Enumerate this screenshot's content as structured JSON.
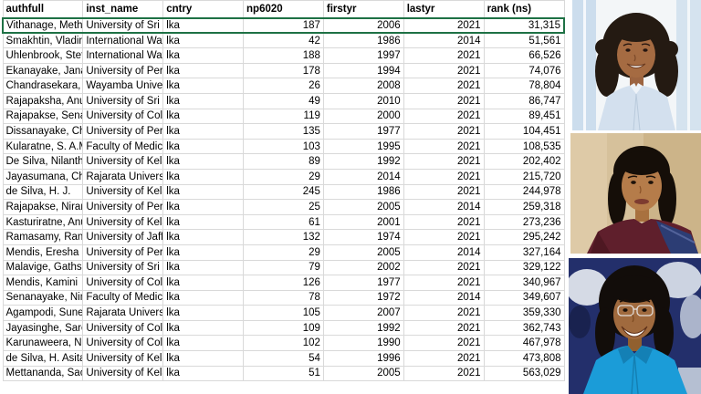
{
  "table": {
    "columns": [
      {
        "key": "authfull",
        "label": "authfull"
      },
      {
        "key": "inst_name",
        "label": "inst_name"
      },
      {
        "key": "cntry",
        "label": "cntry"
      },
      {
        "key": "np6020",
        "label": "np6020"
      },
      {
        "key": "firstyr",
        "label": "firstyr"
      },
      {
        "key": "lastyr",
        "label": "lastyr"
      },
      {
        "key": "rank_ns",
        "label": "rank (ns)"
      }
    ],
    "rows": [
      {
        "authfull": "Vithanage, Meththika",
        "inst_name": "University of Sri Jayewardenepu",
        "cntry": "lka",
        "np6020": "187",
        "firstyr": "2006",
        "lastyr": "2021",
        "rank_ns": "31,315",
        "highlight": "selected"
      },
      {
        "authfull": "Smakhtin, Vladimir",
        "inst_name": "International Water Manageme",
        "cntry": "lka",
        "np6020": "42",
        "firstyr": "1986",
        "lastyr": "2014",
        "rank_ns": "51,561",
        "highlight": null
      },
      {
        "authfull": "Uhlenbrook, Stefan",
        "inst_name": "International Water Manageme",
        "cntry": "lka",
        "np6020": "188",
        "firstyr": "1997",
        "lastyr": "2021",
        "rank_ns": "66,526",
        "highlight": null
      },
      {
        "authfull": "Ekanayake, Janaka",
        "inst_name": "University of Peradeniya",
        "cntry": "lka",
        "np6020": "178",
        "firstyr": "1994",
        "lastyr": "2021",
        "rank_ns": "74,076",
        "highlight": null
      },
      {
        "authfull": "Chandrasekara, Anoma",
        "inst_name": "Wayamba University of Sri Lank",
        "cntry": "lka",
        "np6020": "26",
        "firstyr": "2008",
        "lastyr": "2021",
        "rank_ns": "78,804",
        "highlight": null
      },
      {
        "authfull": "Rajapaksha, Anushka Upar",
        "inst_name": "University of Sri Jayewardenepu",
        "cntry": "lka",
        "np6020": "49",
        "firstyr": "2010",
        "lastyr": "2021",
        "rank_ns": "86,747",
        "highlight": "yellow"
      },
      {
        "authfull": "Rajapakse, Senaka",
        "inst_name": "University of Colombo Faculty o",
        "cntry": "lka",
        "np6020": "119",
        "firstyr": "2000",
        "lastyr": "2021",
        "rank_ns": "89,451",
        "highlight": null
      },
      {
        "authfull": "Dissanayake, Chandraseka",
        "inst_name": "University of Peradeniya",
        "cntry": "lka",
        "np6020": "135",
        "firstyr": "1977",
        "lastyr": "2021",
        "rank_ns": "104,451",
        "highlight": null
      },
      {
        "authfull": "Kularatne, S. A.M.",
        "inst_name": "Faculty of Medicine, University",
        "cntry": "lka",
        "np6020": "103",
        "firstyr": "1995",
        "lastyr": "2021",
        "rank_ns": "108,535",
        "highlight": null
      },
      {
        "authfull": "De Silva, Nilanthi",
        "inst_name": "University of Kelaniya",
        "cntry": "lka",
        "np6020": "89",
        "firstyr": "1992",
        "lastyr": "2021",
        "rank_ns": "202,402",
        "highlight": null
      },
      {
        "authfull": "Jayasumana, Channa",
        "inst_name": "Rajarata University of Sri Lanka",
        "cntry": "lka",
        "np6020": "29",
        "firstyr": "2014",
        "lastyr": "2021",
        "rank_ns": "215,720",
        "highlight": null
      },
      {
        "authfull": "de Silva, H. J.",
        "inst_name": "University of Kelaniya",
        "cntry": "lka",
        "np6020": "245",
        "firstyr": "1986",
        "lastyr": "2021",
        "rank_ns": "244,978",
        "highlight": null
      },
      {
        "authfull": "Rajapakse, Niranjan",
        "inst_name": "University of Peradeniya",
        "cntry": "lka",
        "np6020": "25",
        "firstyr": "2005",
        "lastyr": "2014",
        "rank_ns": "259,318",
        "highlight": null
      },
      {
        "authfull": "Kasturiratne, Anuradhani",
        "inst_name": "University of Kelaniya",
        "cntry": "lka",
        "np6020": "61",
        "firstyr": "2001",
        "lastyr": "2021",
        "rank_ns": "273,236",
        "highlight": null
      },
      {
        "authfull": "Ramasamy, Ranjan",
        "inst_name": "University of Jaffna",
        "cntry": "lka",
        "np6020": "132",
        "firstyr": "1974",
        "lastyr": "2021",
        "rank_ns": "295,242",
        "highlight": null
      },
      {
        "authfull": "Mendis, Eresha",
        "inst_name": "University of Peradeniya",
        "cntry": "lka",
        "np6020": "29",
        "firstyr": "2005",
        "lastyr": "2014",
        "rank_ns": "327,164",
        "highlight": null
      },
      {
        "authfull": "Malavige, Gathsaurie N.",
        "inst_name": "University of Sri Jayewardenepu",
        "cntry": "lka",
        "np6020": "79",
        "firstyr": "2002",
        "lastyr": "2021",
        "rank_ns": "329,122",
        "highlight": "yellow"
      },
      {
        "authfull": "Mendis, Kamini",
        "inst_name": "University of Colombo Faculty o",
        "cntry": "lka",
        "np6020": "126",
        "firstyr": "1977",
        "lastyr": "2021",
        "rank_ns": "340,967",
        "highlight": null
      },
      {
        "authfull": "Senanayake, Nimal",
        "inst_name": "Faculty of Medicine, University",
        "cntry": "lka",
        "np6020": "78",
        "firstyr": "1972",
        "lastyr": "2014",
        "rank_ns": "349,607",
        "highlight": null
      },
      {
        "authfull": "Agampodi, Suneth Buddhil",
        "inst_name": "Rajarata University of Sri Lanka",
        "cntry": "lka",
        "np6020": "105",
        "firstyr": "2007",
        "lastyr": "2021",
        "rank_ns": "359,330",
        "highlight": null
      },
      {
        "authfull": "Jayasinghe, Saroj",
        "inst_name": "University of Colombo",
        "cntry": "lka",
        "np6020": "109",
        "firstyr": "1992",
        "lastyr": "2021",
        "rank_ns": "362,743",
        "highlight": null
      },
      {
        "authfull": "Karunaweera, Nadira D.",
        "inst_name": "University of Colombo Faculty o",
        "cntry": "lka",
        "np6020": "102",
        "firstyr": "1990",
        "lastyr": "2021",
        "rank_ns": "467,978",
        "highlight": null
      },
      {
        "authfull": "de Silva, H. Asita",
        "inst_name": "University of Kelaniya",
        "cntry": "lka",
        "np6020": "54",
        "firstyr": "1996",
        "lastyr": "2021",
        "rank_ns": "473,808",
        "highlight": null
      },
      {
        "authfull": "Mettananda, Sachith",
        "inst_name": "University of Kelaniya",
        "cntry": "lka",
        "np6020": "51",
        "firstyr": "2005",
        "lastyr": "2021",
        "rank_ns": "563,029",
        "highlight": null
      }
    ]
  },
  "colors": {
    "rank_column_fill": "#FFC000",
    "rank_header_text": "#9C0006",
    "highlight_yellow": "#FFFF00",
    "selection_border_green": "#1E7145",
    "selection_gray_tint": "#D2D2D2",
    "gridline": "#D9D9D9"
  },
  "photos": [
    {
      "description": "Portrait of woman with dark curly hair wearing a light blue shirt, bright office background"
    },
    {
      "description": "Portrait of woman with dark hair pulled back wearing a maroon and blue sari, beige wall background"
    },
    {
      "description": "Portrait of smiling woman with glasses wearing a bright blue jacket, dark blue lab background"
    }
  ]
}
